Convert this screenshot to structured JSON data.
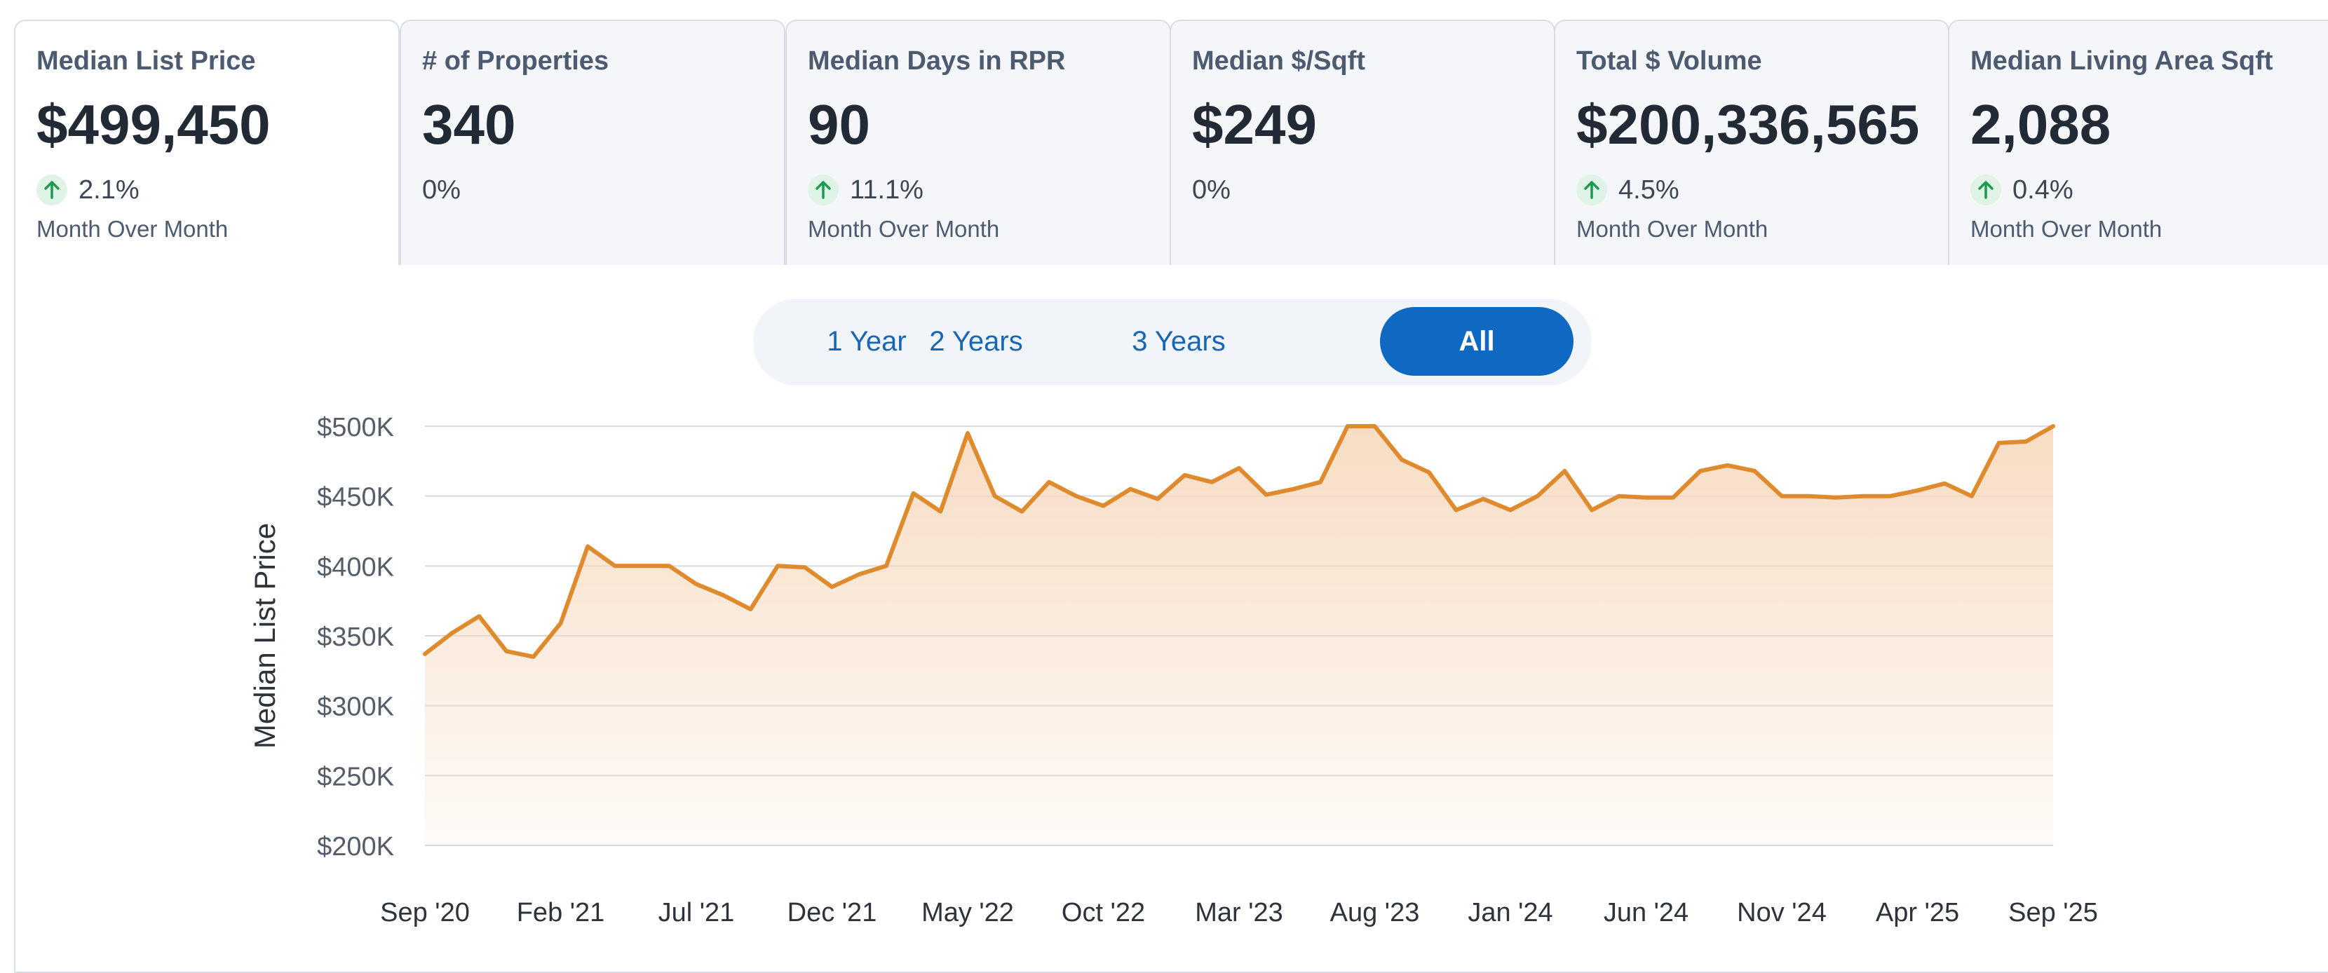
{
  "tabs": [
    {
      "title": "Median List Price",
      "value": "$499,450",
      "change": "2.1%",
      "direction": "up",
      "note": "Month Over Month",
      "active": true
    },
    {
      "title": "# of Properties",
      "value": "340",
      "change": "0%",
      "direction": "none",
      "note": "",
      "active": false
    },
    {
      "title": "Median Days in RPR",
      "value": "90",
      "change": "11.1%",
      "direction": "up",
      "note": "Month Over Month",
      "active": false
    },
    {
      "title": "Median $/Sqft",
      "value": "$249",
      "change": "0%",
      "direction": "none",
      "note": "",
      "active": false
    },
    {
      "title": "Total $ Volume",
      "value": "$200,336,565",
      "change": "4.5%",
      "direction": "up",
      "note": "Month Over Month",
      "active": false
    },
    {
      "title": "Median Living Area Sqft",
      "value": "2,088",
      "change": "0.4%",
      "direction": "up",
      "note": "Month Over Month",
      "active": false
    }
  ],
  "range": {
    "options": [
      "1 Year",
      "2 Years",
      "3 Years",
      "All"
    ],
    "selected": "All"
  },
  "colors": {
    "line": "#e08a2e",
    "fill_top": "#f6d9bd",
    "accent": "#0f68c1",
    "up_arrow": "#1c9a4f"
  },
  "chart_data": {
    "type": "area",
    "title": "",
    "xlabel": "",
    "ylabel": "Median List Price",
    "ylim": [
      200000,
      500000
    ],
    "y_ticks": [
      500000,
      450000,
      400000,
      350000,
      300000,
      250000,
      200000
    ],
    "y_tick_labels": [
      "$500K",
      "$450K",
      "$400K",
      "$350K",
      "$300K",
      "$250K",
      "$200K"
    ],
    "x_tick_labels": [
      "Sep '20",
      "Feb '21",
      "Jul '21",
      "Dec '21",
      "May '22",
      "Oct '22",
      "Mar '23",
      "Aug '23",
      "Jan '24",
      "Jun '24",
      "Nov '24",
      "Apr '25",
      "Sep '25"
    ],
    "x": [
      "2020-09",
      "2020-10",
      "2020-11",
      "2020-12",
      "2021-01",
      "2021-02",
      "2021-03",
      "2021-04",
      "2021-05",
      "2021-06",
      "2021-07",
      "2021-08",
      "2021-09",
      "2021-10",
      "2021-11",
      "2021-12",
      "2022-01",
      "2022-02",
      "2022-03",
      "2022-04",
      "2022-05",
      "2022-06",
      "2022-07",
      "2022-08",
      "2022-09",
      "2022-10",
      "2022-11",
      "2022-12",
      "2023-01",
      "2023-02",
      "2023-03",
      "2023-04",
      "2023-05",
      "2023-06",
      "2023-07",
      "2023-08",
      "2023-09",
      "2023-10",
      "2023-11",
      "2023-12",
      "2024-01",
      "2024-02",
      "2024-03",
      "2024-04",
      "2024-05",
      "2024-06",
      "2024-07",
      "2024-08",
      "2024-09",
      "2024-10",
      "2024-11",
      "2024-12",
      "2025-01",
      "2025-02",
      "2025-03",
      "2025-04",
      "2025-05",
      "2025-06",
      "2025-07",
      "2025-08",
      "2025-09"
    ],
    "series": [
      {
        "values": [
          337000,
          352000,
          364000,
          339000,
          335000,
          359000,
          414000,
          400000,
          400000,
          400000,
          387000,
          379000,
          369000,
          400000,
          399000,
          385000,
          394000,
          400000,
          452000,
          439000,
          495000,
          450000,
          439000,
          460000,
          450000,
          443000,
          455000,
          448000,
          465000,
          460000,
          470000,
          451000,
          455000,
          460000,
          500000,
          500000,
          476000,
          467000,
          440000,
          448000,
          440000,
          450000,
          468000,
          440000,
          450000,
          449000,
          449000,
          468000,
          472000,
          468000,
          450000,
          450000,
          449000,
          450000,
          450000,
          454000,
          459000,
          450000,
          488000,
          489000,
          500000
        ]
      }
    ]
  }
}
